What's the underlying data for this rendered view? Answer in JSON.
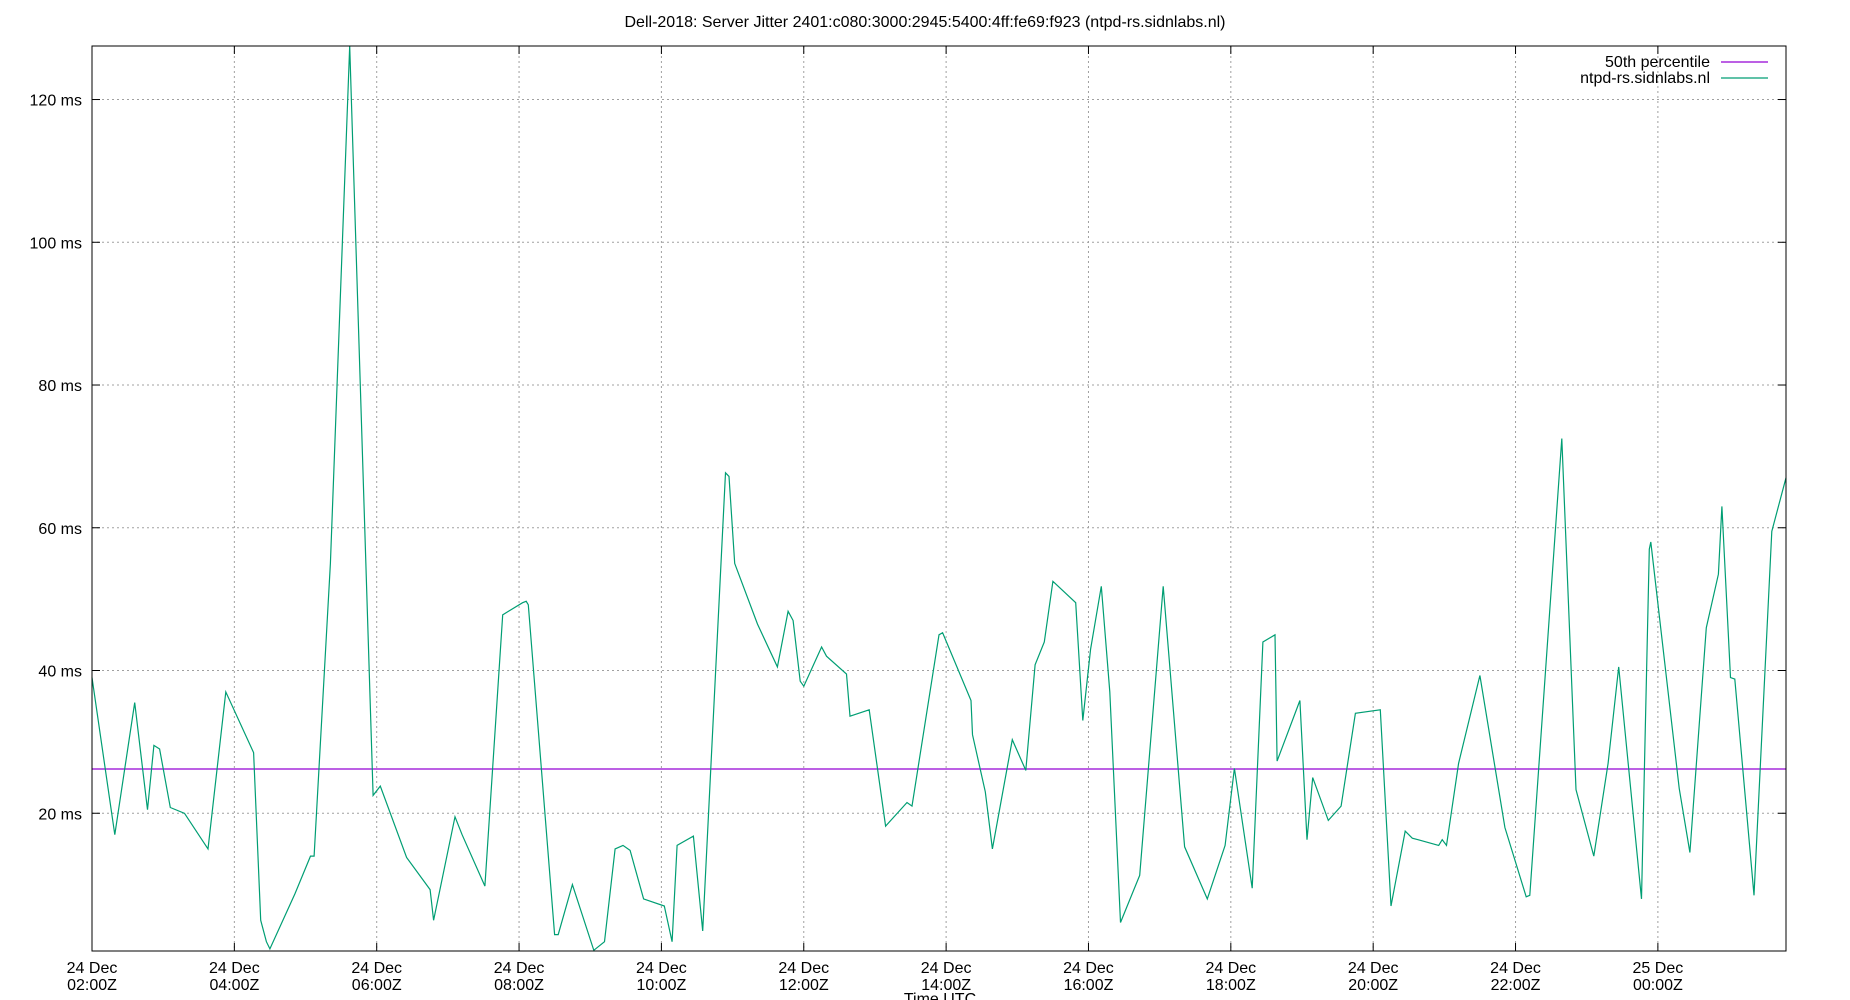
{
  "chart_data": {
    "type": "line",
    "title": "Dell-2018: Server Jitter 2401:c080:3000:2945:5400:4ff:fe69:f923 (ntpd-rs.sidnlabs.nl)",
    "xlabel": "Time UTC",
    "ylabel": "",
    "x_unit": "hours since 24 Dec 00:00Z",
    "xlim": [
      2.0,
      25.8
    ],
    "ylim": [
      0.7,
      127.5
    ],
    "grid": true,
    "legend_position": "top-right",
    "y_ticks": [
      {
        "value": 20,
        "label": "20 ms"
      },
      {
        "value": 40,
        "label": "40 ms"
      },
      {
        "value": 60,
        "label": "60 ms"
      },
      {
        "value": 80,
        "label": "80 ms"
      },
      {
        "value": 100,
        "label": "100 ms"
      },
      {
        "value": 120,
        "label": "120 ms"
      }
    ],
    "x_ticks": [
      {
        "value": 2,
        "line1": "24 Dec",
        "line2": "02:00Z"
      },
      {
        "value": 4,
        "line1": "24 Dec",
        "line2": "04:00Z"
      },
      {
        "value": 6,
        "line1": "24 Dec",
        "line2": "06:00Z"
      },
      {
        "value": 8,
        "line1": "24 Dec",
        "line2": "08:00Z"
      },
      {
        "value": 10,
        "line1": "24 Dec",
        "line2": "10:00Z"
      },
      {
        "value": 12,
        "line1": "24 Dec",
        "line2": "12:00Z"
      },
      {
        "value": 14,
        "line1": "24 Dec",
        "line2": "14:00Z"
      },
      {
        "value": 16,
        "line1": "24 Dec",
        "line2": "16:00Z"
      },
      {
        "value": 18,
        "line1": "24 Dec",
        "line2": "18:00Z"
      },
      {
        "value": 20,
        "line1": "24 Dec",
        "line2": "20:00Z"
      },
      {
        "value": 22,
        "line1": "24 Dec",
        "line2": "22:00Z"
      },
      {
        "value": 24,
        "line1": "25 Dec",
        "line2": "00:00Z"
      }
    ],
    "series": [
      {
        "name": "50th percentile",
        "color": "#9400d3",
        "x": [
          2.0,
          25.8
        ],
        "y": [
          26.2,
          26.2
        ]
      },
      {
        "name": "ntpd-rs.sidnlabs.nl",
        "color": "#009e73",
        "x": [
          2.0,
          2.32,
          2.6,
          2.78,
          2.87,
          2.95,
          3.1,
          3.3,
          3.63,
          3.88,
          4.27,
          4.37,
          4.45,
          4.5,
          4.85,
          5.07,
          5.12,
          5.35,
          5.62,
          5.95,
          6.05,
          6.42,
          6.75,
          6.8,
          7.1,
          7.2,
          7.52,
          7.77,
          8.05,
          8.1,
          8.13,
          8.5,
          8.55,
          8.75,
          9.05,
          9.2,
          9.35,
          9.46,
          9.56,
          9.75,
          10.04,
          10.15,
          10.22,
          10.45,
          10.58,
          10.9,
          10.95,
          11.03,
          11.35,
          11.63,
          11.78,
          11.85,
          11.95,
          12.0,
          12.25,
          12.32,
          12.6,
          12.65,
          12.92,
          13.15,
          13.45,
          13.52,
          13.9,
          13.95,
          14.35,
          14.37,
          14.55,
          14.65,
          14.93,
          15.12,
          15.25,
          15.38,
          15.5,
          15.82,
          15.92,
          16.03,
          16.18,
          16.3,
          16.45,
          16.72,
          17.05,
          17.35,
          17.67,
          17.92,
          18.05,
          18.3,
          18.45,
          18.62,
          18.65,
          18.97,
          19.07,
          19.15,
          19.37,
          19.55,
          19.75,
          20.1,
          20.25,
          20.45,
          20.55,
          20.63,
          20.92,
          20.97,
          21.03,
          21.2,
          21.5,
          21.85,
          22.15,
          22.2,
          22.65,
          22.85,
          23.1,
          23.3,
          23.45,
          23.77,
          23.88,
          23.9,
          24.3,
          24.45,
          24.68,
          24.85,
          24.9,
          25.02,
          25.08,
          25.35,
          25.6,
          25.8
        ],
        "y": [
          39.0,
          17.0,
          35.5,
          20.5,
          29.5,
          29.0,
          20.8,
          20.0,
          15.0,
          37.0,
          28.5,
          5.0,
          2.0,
          1.0,
          8.7,
          14.0,
          14.0,
          55.0,
          127.5,
          22.5,
          23.8,
          13.8,
          9.3,
          5.0,
          19.5,
          17.0,
          9.8,
          47.8,
          49.5,
          49.7,
          49.2,
          3.0,
          3.0,
          10.0,
          0.8,
          2.0,
          15.0,
          15.5,
          14.8,
          8.0,
          7.0,
          2.0,
          15.5,
          16.8,
          3.5,
          67.7,
          67.2,
          55.0,
          46.5,
          40.5,
          48.3,
          47.0,
          38.5,
          37.8,
          43.3,
          42.0,
          39.5,
          33.6,
          34.5,
          18.2,
          21.5,
          21.0,
          45.0,
          45.3,
          35.8,
          31.0,
          23.0,
          15.0,
          30.3,
          26.0,
          40.8,
          44.0,
          52.5,
          49.5,
          33.0,
          43.0,
          51.8,
          37.0,
          4.7,
          11.3,
          51.8,
          15.3,
          8.0,
          15.5,
          26.3,
          9.5,
          44.0,
          45.0,
          27.3,
          35.8,
          16.3,
          25.0,
          19.0,
          21.0,
          34.0,
          34.5,
          7.0,
          17.5,
          16.5,
          16.3,
          15.5,
          16.3,
          15.5,
          27.0,
          39.3,
          18.0,
          8.3,
          8.5,
          72.5,
          23.3,
          14.0,
          27.0,
          40.5,
          8.0,
          57.0,
          58.0,
          23.5,
          14.5,
          46.0,
          53.5,
          63.0,
          39.0,
          38.8,
          8.5,
          59.5,
          67.0
        ]
      }
    ]
  }
}
